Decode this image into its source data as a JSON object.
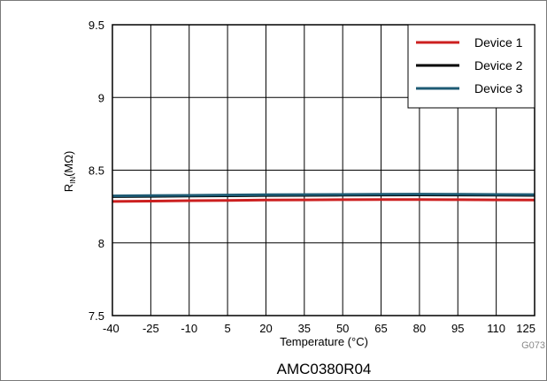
{
  "chart_data": {
    "type": "line",
    "x": [
      -40,
      -25,
      -10,
      5,
      20,
      35,
      50,
      65,
      80,
      95,
      110,
      125
    ],
    "x_ticks": [
      "-40",
      "-25",
      "-10",
      "5",
      "20",
      "35",
      "50",
      "65",
      "80",
      "95",
      "110",
      "125"
    ],
    "y_ticks": [
      "7.5",
      "8",
      "8.5",
      "9",
      "9.5"
    ],
    "xlim": [
      -40,
      125
    ],
    "ylim": [
      7.5,
      9.5
    ],
    "xlabel": "Temperature (°C)",
    "ylabel_main": "R",
    "ylabel_sub": "IN",
    "ylabel_unit": "(MΩ)",
    "grid": true,
    "legend_position": "top-right",
    "series": [
      {
        "name": "Device 1",
        "color": "#cc1f1f",
        "values": [
          8.285,
          8.287,
          8.29,
          8.292,
          8.295,
          8.296,
          8.297,
          8.298,
          8.298,
          8.297,
          8.296,
          8.295
        ]
      },
      {
        "name": "Device 2",
        "color": "#000000",
        "values": [
          8.318,
          8.32,
          8.322,
          8.324,
          8.326,
          8.327,
          8.328,
          8.329,
          8.33,
          8.329,
          8.328,
          8.327
        ]
      },
      {
        "name": "Device 3",
        "color": "#1d5a73",
        "values": [
          8.323,
          8.325,
          8.327,
          8.329,
          8.331,
          8.332,
          8.333,
          8.334,
          8.335,
          8.334,
          8.333,
          8.332
        ]
      }
    ]
  },
  "figure_code": "G073",
  "caption": "AMC0380R04"
}
